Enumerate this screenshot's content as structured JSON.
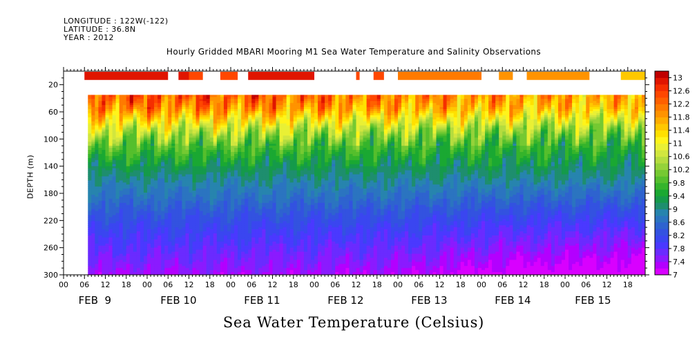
{
  "header": {
    "longitude": "LONGITUDE : 122W(-122)",
    "latitude": "LATITUDE : 36.8N",
    "year": "YEAR : 2012"
  },
  "chart_data": {
    "type": "heatmap",
    "title": "Hourly Gridded MBARI Mooring M1 Sea Water Temperature and Salinity Observations",
    "xlabel": "Sea Water Temperature (Celsius)",
    "ylabel": "DEPTH (m)",
    "y_axis": {
      "range": [
        0,
        300
      ],
      "inverted": true,
      "ticks": [
        20,
        60,
        100,
        140,
        180,
        220,
        260,
        300
      ],
      "minor_step": 10
    },
    "x_axis": {
      "unit": "hours since Feb 9 00:00",
      "range": [
        0,
        167
      ],
      "hour_tick_labels": [
        "00",
        "06",
        "12",
        "18",
        "00",
        "06",
        "12",
        "18",
        "00",
        "06",
        "12",
        "18",
        "00",
        "06",
        "12",
        "18",
        "00",
        "06",
        "12",
        "18",
        "00",
        "06",
        "12",
        "18",
        "00",
        "06",
        "12",
        "18"
      ],
      "day_labels": [
        {
          "label": "FEB  9",
          "hour": 9
        },
        {
          "label": "FEB 10",
          "hour": 33
        },
        {
          "label": "FEB 11",
          "hour": 57
        },
        {
          "label": "FEB 12",
          "hour": 81
        },
        {
          "label": "FEB 13",
          "hour": 105
        },
        {
          "label": "FEB 14",
          "hour": 129
        },
        {
          "label": "FEB 15",
          "hour": 152
        }
      ]
    },
    "data_start_hour": 7,
    "colorbar": {
      "levels": [
        7,
        7.2,
        7.4,
        7.6,
        7.8,
        8,
        8.2,
        8.4,
        8.6,
        8.8,
        9,
        9.2,
        9.4,
        9.6,
        9.8,
        10,
        10.2,
        10.4,
        10.6,
        10.8,
        11,
        11.2,
        11.4,
        11.6,
        11.8,
        12,
        12.2,
        12.4,
        12.6,
        12.8,
        13,
        13.2
      ],
      "labels": [
        "7",
        "7.4",
        "7.8",
        "8.2",
        "8.6",
        "9",
        "9.4",
        "9.8",
        "10.2",
        "10.6",
        "11",
        "11.4",
        "11.8",
        "12.2",
        "12.6",
        "13"
      ],
      "colors": [
        "#d800ff",
        "#b300ff",
        "#8b1aff",
        "#6a2bff",
        "#4a39ff",
        "#3a46f0",
        "#3352e0",
        "#2e63cf",
        "#2b74c0",
        "#2784ae",
        "#1e8e6e",
        "#159a4a",
        "#1aa832",
        "#35b42b",
        "#55bf2d",
        "#75c932",
        "#95d23a",
        "#b5dc3f",
        "#d1e63f",
        "#e9f035",
        "#fff41a",
        "#ffe000",
        "#ffc800",
        "#ffad00",
        "#ff9300",
        "#ff7a00",
        "#ff6000",
        "#ff4700",
        "#f52e00",
        "#e01500",
        "#c00000",
        "#9e0000"
      ]
    },
    "top_sensor_depth_m": 10,
    "top_sensor_segments": [
      {
        "start_hour": 6,
        "end_hour": 24,
        "temp": 12.8
      },
      {
        "start_hour": 24,
        "end_hour": 30,
        "temp": 12.8
      },
      {
        "start_hour": 33,
        "end_hour": 36,
        "temp": 12.8
      },
      {
        "start_hour": 36,
        "end_hour": 40,
        "temp": 12.4
      },
      {
        "start_hour": 45,
        "end_hour": 50,
        "temp": 12.5
      },
      {
        "start_hour": 53,
        "end_hour": 72,
        "temp": 12.8
      },
      {
        "start_hour": 84,
        "end_hour": 85,
        "temp": 12.5
      },
      {
        "start_hour": 89,
        "end_hour": 92,
        "temp": 12.5
      },
      {
        "start_hour": 96,
        "end_hour": 120,
        "temp": 12.1
      },
      {
        "start_hour": 125,
        "end_hour": 129,
        "temp": 11.9
      },
      {
        "start_hour": 133,
        "end_hour": 151,
        "temp": 11.9
      },
      {
        "start_hour": 160,
        "end_hour": 167,
        "temp": 11.5
      }
    ],
    "gap_depth_range_m": [
      13,
      35
    ],
    "profile": [
      {
        "depth": 35,
        "temp": 12.05
      },
      {
        "depth": 45,
        "temp": 11.9
      },
      {
        "depth": 55,
        "temp": 11.7
      },
      {
        "depth": 65,
        "temp": 11.3
      },
      {
        "depth": 75,
        "temp": 10.9
      },
      {
        "depth": 85,
        "temp": 10.5
      },
      {
        "depth": 95,
        "temp": 10.2
      },
      {
        "depth": 110,
        "temp": 9.8
      },
      {
        "depth": 130,
        "temp": 9.4
      },
      {
        "depth": 150,
        "temp": 9.1
      },
      {
        "depth": 170,
        "temp": 8.85
      },
      {
        "depth": 190,
        "temp": 8.6
      },
      {
        "depth": 210,
        "temp": 8.35
      },
      {
        "depth": 230,
        "temp": 8.1
      },
      {
        "depth": 250,
        "temp": 7.9
      },
      {
        "depth": 270,
        "temp": 7.7
      },
      {
        "depth": 290,
        "temp": 7.5
      },
      {
        "depth": 300,
        "temp": 7.35
      }
    ],
    "temporal_trend": {
      "hours": [
        7,
        48,
        96,
        130,
        167
      ],
      "surface_warm_anomaly": [
        0.4,
        0.3,
        0.0,
        -0.2,
        -0.4
      ],
      "deep_cooling_anomaly": [
        0.0,
        0.0,
        -0.1,
        -0.4,
        -0.5
      ]
    }
  }
}
